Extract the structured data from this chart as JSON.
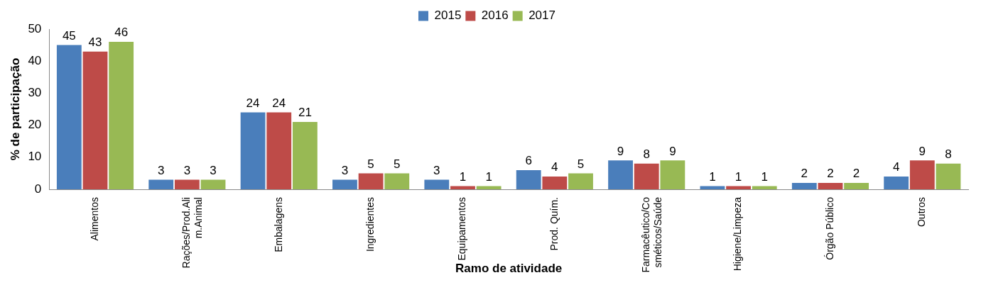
{
  "chart_data": {
    "type": "bar",
    "xlabel": "Ramo de atividade",
    "ylabel": "% de participação",
    "categories": [
      "Alimentos",
      "Rações/Prod.Alim.Animal",
      "Embalagens",
      "Ingredientes",
      "Equipamentos",
      "Prod. Quím.",
      "Farmacêutico/Cosméticos/Saúde",
      "Higiene/Limpeza",
      "Órgão Público",
      "Outros"
    ],
    "series": [
      {
        "name": "2015",
        "color": "#4a7ebb",
        "values": [
          45,
          3,
          24,
          3,
          3,
          6,
          9,
          1,
          2,
          4
        ]
      },
      {
        "name": "2016",
        "color": "#be4b48",
        "values": [
          43,
          3,
          24,
          5,
          1,
          4,
          8,
          1,
          2,
          9
        ]
      },
      {
        "name": "2017",
        "color": "#98b954",
        "values": [
          46,
          3,
          21,
          5,
          1,
          5,
          9,
          1,
          2,
          8
        ]
      }
    ],
    "ylim": [
      0,
      50
    ],
    "yticks": [
      0,
      10,
      20,
      30,
      40,
      50
    ],
    "grid": false,
    "legend": "top",
    "data_labels": true
  }
}
